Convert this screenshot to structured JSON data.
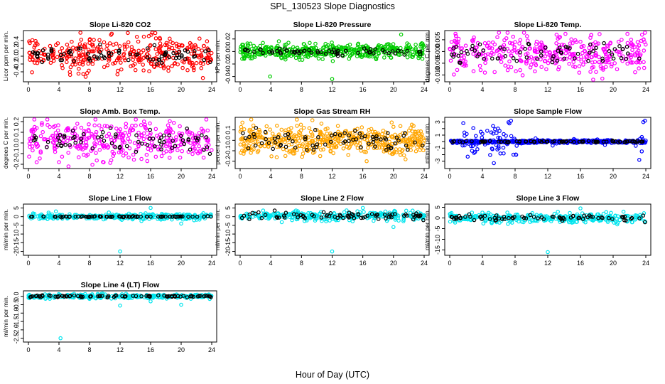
{
  "figure": {
    "title": "SPL_130523  Slope Diagnostics",
    "xlabel": "Hour of Day (UTC)"
  },
  "chart_data": [
    {
      "type": "scatter",
      "title": "Slope Li-820 CO2",
      "ylabel": "Licor ppm per min.",
      "color": "#ff0000",
      "xlim": [
        0,
        24
      ],
      "xticks": [
        0,
        4,
        8,
        12,
        16,
        20,
        24
      ],
      "ylim": [
        -0.6,
        0.6
      ],
      "yticks": [
        -0.4,
        -0.2,
        0.0,
        0.2,
        0.4
      ],
      "ytick_labels": [
        "-0.4",
        "-0.2",
        "0.0",
        "0.2",
        "0.4"
      ],
      "x": [
        0.5,
        1.2,
        2.0,
        3.1,
        4.2,
        5.0,
        6.3,
        7.5,
        8.4,
        9.2,
        10.5,
        11.8,
        12.6,
        13.4,
        14.5,
        15.6,
        16.1,
        17.3,
        18.4,
        19.5,
        20.2,
        21.6,
        22.4,
        23.5
      ],
      "y": [
        0.05,
        0.3,
        -0.1,
        0.15,
        0.02,
        -0.15,
        0.2,
        0.0,
        -0.2,
        0.12,
        0.08,
        -0.05,
        0.25,
        0.1,
        -0.1,
        0.05,
        0.55,
        -0.25,
        0.18,
        0.02,
        -0.3,
        0.2,
        0.45,
        -0.05
      ],
      "clean_x": [
        0.6,
        1.8,
        3.0,
        4.4,
        5.6,
        6.8,
        8.0,
        9.4,
        10.6,
        11.9,
        13.1,
        14.3,
        15.6,
        16.8,
        18.0,
        19.3,
        20.5,
        21.8,
        23.0,
        23.8
      ],
      "clean_y": [
        0.1,
        -0.15,
        0.15,
        -0.1,
        0.05,
        0.2,
        -0.05,
        0.1,
        0.0,
        0.15,
        -0.1,
        0.05,
        0.2,
        -0.2,
        0.1,
        -0.05,
        0.15,
        0.0,
        -0.1,
        -0.15
      ],
      "cloud": {
        "center": 0.05,
        "spread": 0.22,
        "count": 340
      },
      "clean": {
        "spread": 0.1,
        "count": 60
      }
    },
    {
      "type": "scatter",
      "title": "Slope Li-820 Pressure",
      "ylabel": "kPa per min.",
      "color": "#00cc00",
      "xlim": [
        0,
        24
      ],
      "xticks": [
        0,
        4,
        8,
        12,
        16,
        20,
        24
      ],
      "ylim": [
        -0.045,
        0.03
      ],
      "yticks": [
        -0.04,
        -0.02,
        0.0,
        0.02
      ],
      "ytick_labels": [
        "-0.04",
        "-0.02",
        "0.00",
        "0.02"
      ],
      "x": [
        0.3,
        1.5,
        2.6,
        3.9,
        5.1,
        6.4,
        7.6,
        8.9,
        10.1,
        11.5,
        12.0,
        13.6,
        14.8,
        16.0,
        17.3,
        18.5,
        19.7,
        21.0,
        22.2,
        23.4
      ],
      "y": [
        0.0,
        0.004,
        -0.003,
        -0.04,
        0.005,
        0.002,
        -0.006,
        0.004,
        0.001,
        -0.003,
        -0.044,
        0.006,
        0.002,
        0.008,
        -0.005,
        0.003,
        -0.01,
        0.027,
        0.006,
        -0.008
      ],
      "clean_x": [
        1.0,
        2.6,
        4.2,
        5.8,
        7.4,
        9.0,
        10.6,
        12.2,
        13.8,
        15.4,
        17.0,
        18.6,
        20.2,
        21.8,
        23.5
      ],
      "clean_y": [
        0.001,
        0.003,
        -0.002,
        0.004,
        0.0,
        0.002,
        -0.001,
        0.003,
        0.001,
        -0.002,
        0.004,
        0.002,
        -0.003,
        0.001,
        0.0
      ],
      "cloud": {
        "center": 0.0005,
        "spread": 0.006,
        "count": 420
      },
      "clean": {
        "spread": 0.003,
        "count": 50
      }
    },
    {
      "type": "scatter",
      "title": "Slope Li-820 Temp.",
      "ylabel": "degrees C per min.",
      "color": "#ff00ff",
      "xlim": [
        0,
        24
      ],
      "xticks": [
        0,
        4,
        8,
        12,
        16,
        20,
        24
      ],
      "ylim": [
        -0.012,
        0.008
      ],
      "yticks": [
        -0.01,
        -0.005,
        0.0,
        0.005
      ],
      "ytick_labels": [
        "-0.010",
        "-0.005",
        "0.000",
        "0.005"
      ],
      "x": [
        0.5,
        1.7,
        2.9,
        4.3,
        5.5,
        6.8,
        8.0,
        9.1,
        10.4,
        11.7,
        12.9,
        14.2,
        15.5,
        16.7,
        18.0,
        19.2,
        20.5,
        21.7,
        23.0,
        23.8
      ],
      "y": [
        0.002,
        -0.004,
        0.005,
        -0.009,
        0.003,
        -0.006,
        0.004,
        0.008,
        -0.003,
        0.002,
        -0.005,
        0.001,
        0.004,
        -0.002,
        0.003,
        -0.004,
        0.0,
        0.002,
        0.004,
        -0.007
      ],
      "clean_x": [
        0.8,
        2.2,
        3.7,
        5.2,
        6.7,
        8.2,
        9.7,
        11.2,
        12.7,
        14.2,
        15.7,
        17.2,
        18.7,
        20.2,
        21.7,
        23.2
      ],
      "clean_y": [
        0.002,
        -0.001,
        0.003,
        -0.003,
        0.001,
        -0.004,
        0.003,
        0.0,
        -0.002,
        0.002,
        -0.001,
        0.003,
        -0.003,
        0.001,
        0.002,
        -0.003
      ],
      "cloud": {
        "center": -0.0005,
        "spread": 0.0038,
        "count": 360
      },
      "clean": {
        "spread": 0.0022,
        "count": 55
      }
    },
    {
      "type": "scatter",
      "title": "Slope Amb. Box Temp.",
      "ylabel": "degrees C per min.",
      "color": "#ff00ff",
      "xlim": [
        0,
        24
      ],
      "xticks": [
        0,
        4,
        8,
        12,
        16,
        20,
        24
      ],
      "ylim": [
        -0.22,
        0.22
      ],
      "yticks": [
        -0.2,
        -0.1,
        0.0,
        0.1,
        0.2
      ],
      "ytick_labels": [
        "-0.2",
        "-0.1",
        "0.0",
        "0.1",
        "0.2"
      ],
      "x": [
        0.4,
        1.6,
        2.8,
        4.0,
        5.2,
        6.4,
        7.6,
        8.8,
        10.0,
        11.2,
        12.4,
        13.6,
        14.8,
        16.0,
        17.2,
        18.4,
        19.6,
        20.8,
        22.0,
        23.5
      ],
      "y": [
        0.12,
        -0.08,
        0.15,
        -0.18,
        0.05,
        0.18,
        -0.12,
        0.08,
        0.16,
        -0.1,
        0.02,
        0.12,
        -0.15,
        0.09,
        -0.06,
        0.14,
        -0.03,
        0.1,
        -0.08,
        0.02
      ],
      "clean_x": [
        0.9,
        2.4,
        3.9,
        5.4,
        6.9,
        8.4,
        9.9,
        11.4,
        12.9,
        14.4,
        15.9,
        17.4,
        18.9,
        20.4,
        21.9,
        23.4
      ],
      "clean_y": [
        0.03,
        -0.04,
        0.05,
        -0.02,
        0.04,
        -0.05,
        0.02,
        0.06,
        -0.03,
        0.01,
        0.04,
        -0.06,
        0.02,
        -0.01,
        0.05,
        -0.04
      ],
      "cloud": {
        "center": 0.02,
        "spread": 0.085,
        "count": 330
      },
      "clean": {
        "spread": 0.05,
        "count": 55
      }
    },
    {
      "type": "scatter",
      "title": "Slope Gas Stream RH",
      "ylabel": "percent per min.",
      "color": "#ffa500",
      "xlim": [
        0,
        24
      ],
      "xticks": [
        0,
        4,
        8,
        12,
        16,
        20,
        24
      ],
      "ylim": [
        -0.25,
        0.2
      ],
      "yticks": [
        -0.2,
        -0.1,
        0.0,
        0.1
      ],
      "ytick_labels": [
        "-0.2",
        "-0.1",
        "0.0",
        "0.1"
      ],
      "x": [
        0.3,
        1.4,
        2.5,
        3.7,
        4.8,
        5.9,
        7.1,
        8.3,
        9.4,
        10.6,
        11.8,
        12.9,
        14.1,
        15.3,
        16.5,
        17.6,
        18.8,
        20.0,
        21.2,
        22.4,
        23.6
      ],
      "y": [
        0.17,
        -0.12,
        0.1,
        -0.06,
        0.14,
        -0.15,
        0.05,
        0.12,
        -0.08,
        0.16,
        -0.1,
        0.06,
        -0.14,
        0.11,
        -0.2,
        0.08,
        -0.05,
        0.13,
        -0.09,
        0.15,
        -0.07
      ],
      "clean_x": [
        0.7,
        2.0,
        3.3,
        4.6,
        5.9,
        7.2,
        8.5,
        9.8,
        11.1,
        12.4,
        13.7,
        15.0,
        16.3,
        17.6,
        18.9,
        20.2,
        21.5,
        22.8,
        23.8
      ],
      "clean_y": [
        0.02,
        -0.05,
        0.08,
        -0.02,
        0.05,
        -0.07,
        0.03,
        0.1,
        -0.04,
        0.06,
        -0.01,
        0.09,
        0.04,
        -0.06,
        0.02,
        -0.03,
        0.07,
        -0.02,
        -0.05
      ],
      "cloud": {
        "center": 0.0,
        "spread": 0.065,
        "count": 450
      },
      "clean": {
        "spread": 0.05,
        "count": 55
      }
    },
    {
      "type": "scatter",
      "title": "Slope Sample Flow",
      "ylabel": "ml/min per min.",
      "color": "#0000ff",
      "xlim": [
        0,
        24
      ],
      "xticks": [
        0,
        4,
        8,
        12,
        16,
        20,
        24
      ],
      "ylim": [
        -3.8,
        3.4
      ],
      "yticks": [
        -3,
        -2,
        -1,
        0,
        1,
        2,
        3
      ],
      "ytick_labels": [
        "-3",
        "",
        "-1",
        "",
        "1",
        "",
        "3"
      ],
      "x": [
        1.8,
        2.2,
        3.1,
        4.0,
        5.4,
        5.9,
        6.6,
        7.3,
        7.5,
        7.8,
        10.5,
        12.6,
        15.2,
        19.0,
        23.2,
        23.5,
        23.7,
        23.9
      ],
      "y": [
        1.4,
        -2.3,
        -1.6,
        1.2,
        -3.3,
        2.0,
        -1.8,
        2.8,
        3.2,
        -2.0,
        0.5,
        -0.6,
        0.4,
        -0.5,
        -2.8,
        -1.5,
        3.0,
        3.2
      ],
      "clean_x": [
        0.5,
        1.6,
        2.7,
        3.8,
        4.9,
        6.0,
        7.1,
        8.2,
        9.3,
        10.4,
        11.5,
        12.6,
        13.7,
        14.8,
        15.9,
        17.0,
        18.1,
        19.2,
        20.3,
        21.4,
        22.5,
        23.6
      ],
      "clean_y": [
        0.1,
        -0.1,
        0.05,
        -0.05,
        0.1,
        0.0,
        -0.1,
        0.05,
        0.0,
        -0.05,
        0.1,
        0.0,
        -0.05,
        0.05,
        0.0,
        0.1,
        -0.05,
        0.0,
        0.05,
        -0.1,
        0.05,
        0.0
      ],
      "cloud": {
        "center": 0.0,
        "spread": 0.12,
        "count": 420,
        "burst": [
          [
            1.5,
            8.2,
            1.2
          ],
          [
            22.5,
            24.0,
            1.0
          ]
        ]
      },
      "clean": {
        "spread": 0.06,
        "count": 60
      }
    },
    {
      "type": "scatter",
      "title": "Slope Line 1 Flow",
      "ylabel": "ml/min per min.",
      "color": "#00e5ee",
      "xlim": [
        0,
        24
      ],
      "xticks": [
        0,
        4,
        8,
        12,
        16,
        20,
        24
      ],
      "ylim": [
        -21,
        6
      ],
      "yticks": [
        -20,
        -15,
        -10,
        -5,
        0,
        5
      ],
      "ytick_labels": [
        "-20",
        "-15",
        "-10",
        "-5",
        "0",
        "5"
      ],
      "x": [
        3.6,
        12.0,
        16.0,
        20.0,
        14.8,
        22.9
      ],
      "y": [
        3.0,
        -20.0,
        5.0,
        -4.0,
        -2.5,
        2.0
      ],
      "clean_x": [
        0.5,
        2.0,
        3.5,
        5.0,
        6.5,
        8.0,
        9.5,
        11.0,
        12.5,
        14.0,
        15.5,
        17.0,
        18.5,
        20.0,
        21.5,
        23.0,
        23.9
      ],
      "clean_y": [
        0,
        0,
        0,
        0,
        0,
        0,
        0,
        0,
        0,
        0,
        0,
        0,
        0,
        0,
        0,
        0,
        0
      ],
      "cloud": {
        "center": 0.0,
        "spread": 0.8,
        "count": 300
      },
      "clean": {
        "spread": 0.15,
        "count": 60
      }
    },
    {
      "type": "scatter",
      "title": "Slope Line 2 Flow",
      "ylabel": "ml/min per min.",
      "color": "#00e5ee",
      "xlim": [
        0,
        24
      ],
      "xticks": [
        0,
        4,
        8,
        12,
        16,
        20,
        24
      ],
      "ylim": [
        -21,
        6
      ],
      "yticks": [
        -20,
        -15,
        -10,
        -5,
        0,
        5
      ],
      "ytick_labels": [
        "-20",
        "-15",
        "-10",
        "-5",
        "0",
        "5"
      ],
      "x": [
        12.0,
        16.0,
        20.0,
        3.0,
        8.4
      ],
      "y": [
        -20.0,
        5.0,
        -6.0,
        3.5,
        -2.5
      ],
      "clean_x": [
        0.5,
        1.2,
        2.4,
        3.3,
        4.5,
        5.8,
        7.0,
        8.2,
        9.4,
        10.6,
        11.8,
        13.0,
        14.2,
        15.4,
        16.6,
        17.8,
        19.0,
        20.2,
        21.4,
        22.6,
        23.9
      ],
      "clean_y": [
        0.5,
        -1.5,
        2.5,
        1.0,
        3.5,
        -0.5,
        1.5,
        0.5,
        1.0,
        -0.5,
        2.0,
        1.0,
        -0.5,
        1.5,
        0.5,
        1.0,
        -1.0,
        1.5,
        0.5,
        1.0,
        -2.0
      ],
      "cloud": {
        "center": 0.5,
        "spread": 1.2,
        "count": 300
      },
      "clean": {
        "spread": 0.9,
        "count": 55
      }
    },
    {
      "type": "scatter",
      "title": "Slope Line 3 Flow",
      "ylabel": "ml/min per min.",
      "color": "#00e5ee",
      "xlim": [
        0,
        24
      ],
      "xticks": [
        0,
        4,
        8,
        12,
        16,
        20,
        24
      ],
      "ylim": [
        -16.5,
        5.5
      ],
      "yticks": [
        -15,
        -10,
        -5,
        0,
        5
      ],
      "ytick_labels": [
        "-15",
        "-10",
        "-5",
        "0",
        "5"
      ],
      "x": [
        12.0,
        16.0,
        20.5,
        4.0,
        14.6
      ],
      "y": [
        -16.0,
        4.5,
        -3.0,
        2.5,
        -2.0
      ],
      "clean_x": [
        0.8,
        1.9,
        3.0,
        4.3,
        5.5,
        6.7,
        7.9,
        9.1,
        10.3,
        11.5,
        12.7,
        13.9,
        15.1,
        16.3,
        17.5,
        18.7,
        19.9,
        21.1,
        22.3,
        23.9
      ],
      "clean_y": [
        -0.5,
        0.5,
        -1.0,
        1.0,
        0.0,
        -0.5,
        0.5,
        0.0,
        0.5,
        -0.5,
        0.5,
        0.0,
        1.0,
        -0.5,
        0.5,
        0.0,
        -0.5,
        0.5,
        0.0,
        -2.0
      ],
      "cloud": {
        "center": 0.0,
        "spread": 1.1,
        "count": 300
      },
      "clean": {
        "spread": 0.7,
        "count": 55
      }
    },
    {
      "type": "scatter",
      "title": "Slope Line 4 (LT) Flow",
      "ylabel": "ml/min per min.",
      "color": "#00e5ee",
      "xlim": [
        0,
        24
      ],
      "xticks": [
        0,
        4,
        8,
        12,
        16,
        20,
        24
      ],
      "ylim": [
        -2.6,
        0.2
      ],
      "yticks": [
        -2.5,
        -2.0,
        -1.5,
        -1.0,
        -0.5,
        0.0
      ],
      "ytick_labels": [
        "-2.5",
        "-2.0",
        "-1.5",
        "-1.0",
        "-0.5",
        "0.0"
      ],
      "x": [
        4.2,
        12.0,
        20.0,
        16.0,
        8.0
      ],
      "y": [
        -2.5,
        -0.55,
        -0.5,
        -0.3,
        -0.15
      ],
      "clean_x": [
        0.5,
        1.6,
        2.7,
        3.8,
        4.9,
        6.0,
        7.1,
        8.2,
        9.3,
        10.4,
        11.5,
        12.6,
        13.7,
        14.8,
        15.9,
        17.0,
        18.1,
        19.2,
        20.3,
        21.4,
        22.5,
        23.9
      ],
      "clean_y": [
        0.0,
        -0.05,
        0.05,
        -0.02,
        0.03,
        0.05,
        -0.03,
        0.0,
        0.02,
        -0.05,
        0.05,
        -0.02,
        0.03,
        0.0,
        -0.03,
        0.05,
        0.0,
        -0.02,
        0.03,
        0.0,
        0.02,
        -0.05
      ],
      "cloud": {
        "center": 0.0,
        "spread": 0.06,
        "count": 280
      },
      "clean": {
        "spread": 0.03,
        "count": 60
      }
    }
  ]
}
